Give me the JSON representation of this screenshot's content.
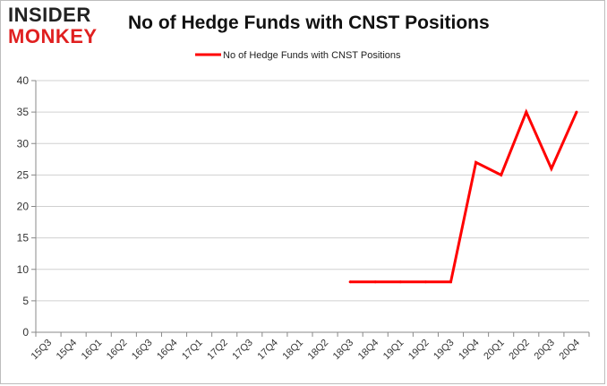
{
  "logo": {
    "line1": "INSIDER",
    "line2": "MONKEY"
  },
  "chart_data": {
    "type": "line",
    "title": "No of Hedge Funds with CNST Positions",
    "xlabel": "",
    "ylabel": "",
    "categories": [
      "15Q3",
      "15Q4",
      "16Q1",
      "16Q2",
      "16Q3",
      "16Q4",
      "17Q1",
      "17Q2",
      "17Q3",
      "17Q4",
      "18Q1",
      "18Q2",
      "18Q3",
      "18Q4",
      "19Q1",
      "19Q2",
      "19Q3",
      "19Q4",
      "20Q1",
      "20Q2",
      "20Q3",
      "20Q4"
    ],
    "series": [
      {
        "name": "No of Hedge Funds with CNST Positions",
        "color": "#ff0000",
        "values": [
          null,
          null,
          null,
          null,
          null,
          null,
          null,
          null,
          null,
          null,
          null,
          null,
          8,
          8,
          8,
          8,
          8,
          27,
          25,
          35,
          26,
          35
        ]
      }
    ],
    "ylim": [
      0,
      40
    ],
    "yticks": [
      0,
      5,
      10,
      15,
      20,
      25,
      30,
      35,
      40
    ],
    "grid": true,
    "legend": "top-center"
  }
}
